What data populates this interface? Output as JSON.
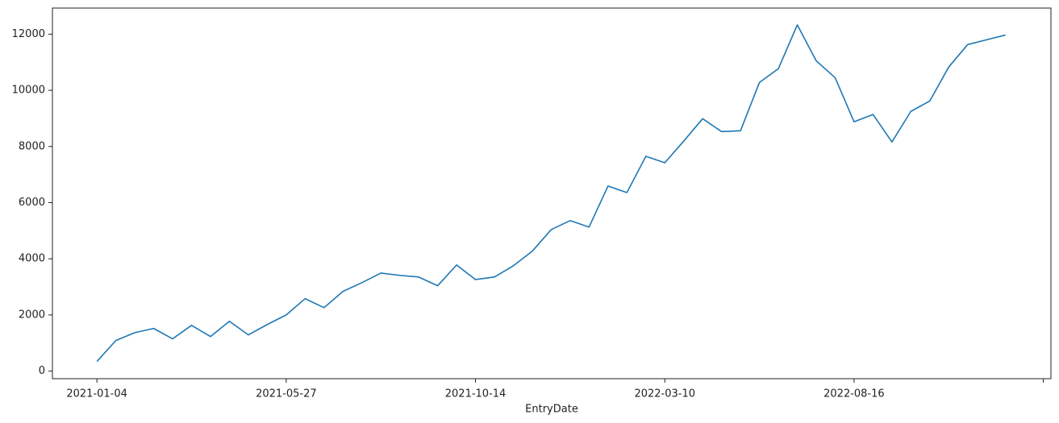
{
  "chart_data": {
    "type": "line",
    "xlabel": "EntryDate",
    "categories": [
      "2021-01-04",
      null,
      null,
      null,
      null,
      null,
      null,
      null,
      null,
      null,
      "2021-05-27",
      null,
      null,
      null,
      null,
      null,
      null,
      null,
      null,
      null,
      "2021-10-14",
      null,
      null,
      null,
      null,
      null,
      null,
      null,
      null,
      null,
      "2022-03-10",
      null,
      null,
      null,
      null,
      null,
      null,
      null,
      null,
      null,
      "2022-08-16",
      null,
      null,
      null,
      null,
      null,
      null,
      null,
      null
    ],
    "series": [
      {
        "color": "#1f77b4",
        "values": [
          340,
          1090,
          1370,
          1520,
          1150,
          1630,
          1230,
          1775,
          1290,
          1660,
          2000,
          2580,
          2260,
          2840,
          3150,
          3490,
          3410,
          3350,
          3040,
          3780,
          3260,
          3350,
          3750,
          4270,
          5040,
          5360,
          5130,
          6590,
          6360,
          7650,
          7420,
          8190,
          8990,
          8530,
          8560,
          10280,
          10770,
          12330,
          11050,
          10450,
          8880,
          9140,
          8160,
          9250,
          9620,
          10830,
          11630,
          11800,
          11970
        ]
      }
    ],
    "xlim": [
      -2.35,
      50.4
    ],
    "xticks": [
      0,
      10,
      20,
      30,
      40,
      50
    ],
    "ylim": [
      -270,
      12930
    ],
    "yticks": [
      0,
      2000,
      4000,
      6000,
      8000,
      10000,
      12000
    ]
  }
}
